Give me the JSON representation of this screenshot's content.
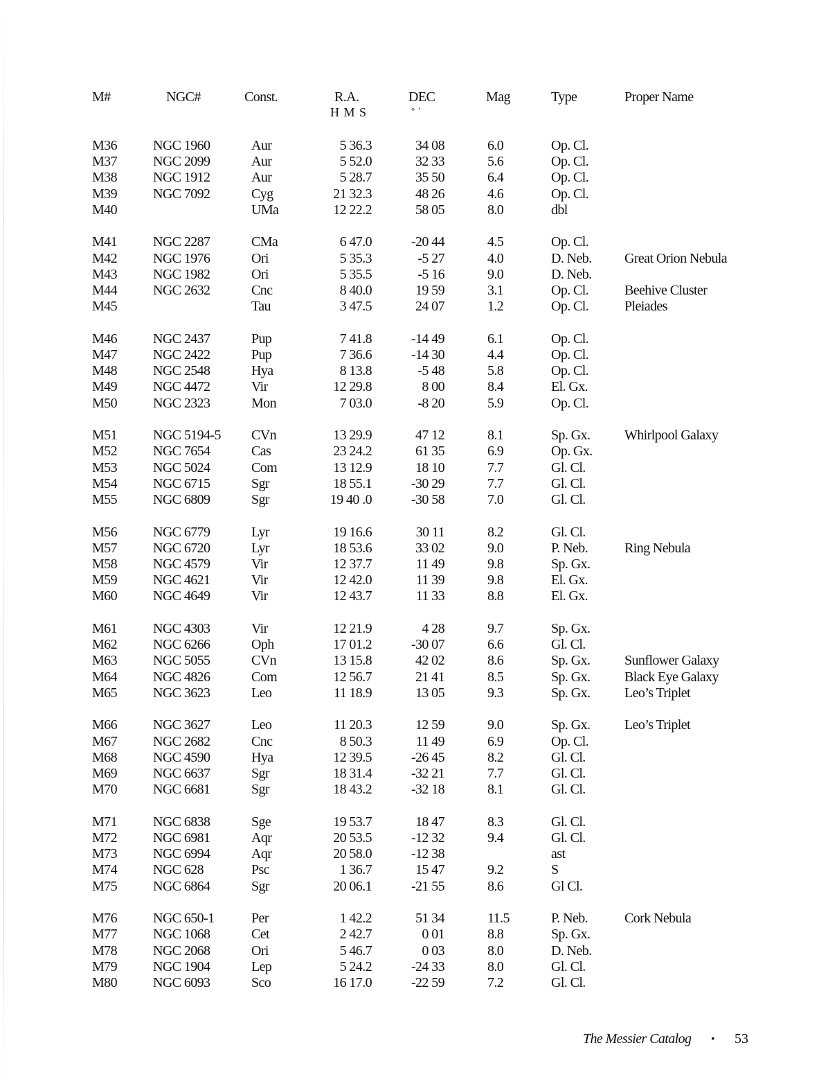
{
  "headers": {
    "m": "M#",
    "ngc": "NGC#",
    "const": "Const.",
    "ra": "R.A.",
    "ra_units": "H M S",
    "dec": "DEC",
    "dec_units": "° ′",
    "mag": "Mag",
    "type": "Type",
    "name": "Proper Name"
  },
  "groups": [
    [
      [
        "M36",
        "NGC 1960",
        "Aur",
        "5 36.3",
        "34 08",
        "6.0",
        "Op. Cl.",
        ""
      ],
      [
        "M37",
        "NGC 2099",
        "Aur",
        "5 52.0",
        "32 33",
        "5.6",
        "Op. Cl.",
        ""
      ],
      [
        "M38",
        "NGC 1912",
        "Aur",
        "5 28.7",
        "35 50",
        "6.4",
        "Op. Cl.",
        ""
      ],
      [
        "M39",
        "NGC 7092",
        "Cyg",
        "21 32.3",
        "48 26",
        "4.6",
        "Op. Cl.",
        ""
      ],
      [
        "M40",
        "",
        "UMa",
        "12 22.2",
        "58 05",
        "8.0",
        "dbl",
        ""
      ]
    ],
    [
      [
        "M41",
        "NGC 2287",
        "CMa",
        "6 47.0",
        "-20 44",
        "4.5",
        "Op. Cl.",
        ""
      ],
      [
        "M42",
        "NGC 1976",
        "Ori",
        "5 35.3",
        "-5 27",
        "4.0",
        "D. Neb.",
        "Great Orion Nebula"
      ],
      [
        "M43",
        "NGC 1982",
        "Ori",
        "5 35.5",
        "-5 16",
        "9.0",
        "D. Neb.",
        ""
      ],
      [
        "M44",
        "NGC 2632",
        "Cnc",
        "8 40.0",
        "19 59",
        "3.1",
        "Op. Cl.",
        "Beehive Cluster"
      ],
      [
        "M45",
        "",
        "Tau",
        "3 47.5",
        "24 07",
        "1.2",
        "Op. Cl.",
        "Pleiades"
      ]
    ],
    [
      [
        "M46",
        "NGC 2437",
        "Pup",
        "7 41.8",
        "-14 49",
        "6.1",
        "Op. Cl.",
        ""
      ],
      [
        "M47",
        "NGC 2422",
        "Pup",
        "7 36.6",
        "-14 30",
        "4.4",
        "Op. Cl.",
        ""
      ],
      [
        "M48",
        "NGC 2548",
        "Hya",
        "8 13.8",
        "-5 48",
        "5.8",
        "Op. Cl.",
        ""
      ],
      [
        "M49",
        "NGC 4472",
        "Vir",
        "12 29.8",
        "8 00",
        "8.4",
        "El. Gx.",
        ""
      ],
      [
        "M50",
        "NGC 2323",
        "Mon",
        "7 03.0",
        "-8 20",
        "5.9",
        "Op. Cl.",
        ""
      ]
    ],
    [
      [
        "M51",
        "NGC 5194-5",
        "CVn",
        "13 29.9",
        "47 12",
        "8.1",
        "Sp. Gx.",
        "Whirlpool Galaxy"
      ],
      [
        "M52",
        "NGC 7654",
        "Cas",
        "23 24.2",
        "61 35",
        "6.9",
        "Op. Gx.",
        ""
      ],
      [
        "M53",
        "NGC 5024",
        "Com",
        "13 12.9",
        "18 10",
        "7.7",
        "Gl. Cl.",
        ""
      ],
      [
        "M54",
        "NGC 6715",
        "Sgr",
        "18 55.1",
        "-30 29",
        "7.7",
        "Gl. Cl.",
        ""
      ],
      [
        "M55",
        "NGC 6809",
        "Sgr",
        "19 40 .0",
        "-30 58",
        "7.0",
        "Gl. Cl.",
        ""
      ]
    ],
    [
      [
        "M56",
        "NGC 6779",
        "Lyr",
        "19 16.6",
        "30 11",
        "8.2",
        "Gl. Cl.",
        ""
      ],
      [
        "M57",
        "NGC 6720",
        "Lyr",
        "18 53.6",
        "33 02",
        "9.0",
        "P. Neb.",
        "Ring Nebula"
      ],
      [
        "M58",
        "NGC 4579",
        "Vir",
        "12 37.7",
        "11 49",
        "9.8",
        "Sp. Gx.",
        ""
      ],
      [
        "M59",
        "NGC 4621",
        "Vir",
        "12 42.0",
        "11 39",
        "9.8",
        "El. Gx.",
        ""
      ],
      [
        "M60",
        "NGC 4649",
        "Vir",
        "12 43.7",
        "11 33",
        "8.8",
        "El. Gx.",
        ""
      ]
    ],
    [
      [
        "M61",
        "NGC 4303",
        "Vir",
        "12 21.9",
        "4 28",
        "9.7",
        "Sp. Gx.",
        ""
      ],
      [
        "M62",
        "NGC 6266",
        "Oph",
        "17 01.2",
        "-30 07",
        "6.6",
        "Gl. Cl.",
        ""
      ],
      [
        "M63",
        "NGC 5055",
        "CVn",
        "13 15.8",
        "42 02",
        "8.6",
        "Sp. Gx.",
        "Sunflower Galaxy"
      ],
      [
        "M64",
        "NGC 4826",
        "Com",
        "12 56.7",
        "21 41",
        "8.5",
        "Sp. Gx.",
        "Black Eye Galaxy"
      ],
      [
        "M65",
        "NGC 3623",
        "Leo",
        "11 18.9",
        "13 05",
        "9.3",
        "Sp. Gx.",
        "Leo’s Triplet"
      ]
    ],
    [
      [
        "M66",
        "NGC 3627",
        "Leo",
        "11 20.3",
        "12 59",
        "9.0",
        "Sp. Gx.",
        "Leo’s Triplet"
      ],
      [
        "M67",
        "NGC 2682",
        "Cnc",
        "8 50.3",
        "11 49",
        "6.9",
        "Op. Cl.",
        ""
      ],
      [
        "M68",
        "NGC 4590",
        "Hya",
        "12 39.5",
        "-26 45",
        "8.2",
        "Gl. Cl.",
        ""
      ],
      [
        "M69",
        "NGC 6637",
        "Sgr",
        "18 31.4",
        "-32 21",
        "7.7",
        "Gl. Cl.",
        ""
      ],
      [
        "M70",
        "NGC 6681",
        "Sgr",
        "18 43.2",
        "-32 18",
        "8.1",
        "Gl. Cl.",
        ""
      ]
    ],
    [
      [
        "M71",
        "NGC 6838",
        "Sge",
        "19 53.7",
        "18 47",
        "8.3",
        "Gl. Cl.",
        ""
      ],
      [
        "M72",
        "NGC 6981",
        "Aqr",
        "20 53.5",
        "-12 32",
        "9.4",
        "Gl. Cl.",
        ""
      ],
      [
        "M73",
        "NGC 6994",
        "Aqr",
        "20 58.0",
        "-12 38",
        "",
        "ast",
        ""
      ],
      [
        "M74",
        "NGC 628",
        "Psc",
        "1 36.7",
        "15 47",
        "9.2",
        "S",
        ""
      ],
      [
        "M75",
        "NGC 6864",
        "Sgr",
        "20 06.1",
        "-21 55",
        "8.6",
        "Gl Cl.",
        ""
      ]
    ],
    [
      [
        "M76",
        "NGC 650-1",
        "Per",
        "1 42.2",
        "51 34",
        "11.5",
        "P. Neb.",
        "Cork Nebula"
      ],
      [
        "M77",
        "NGC 1068",
        "Cet",
        "2 42.7",
        "0 01",
        "8.8",
        "Sp. Gx.",
        ""
      ],
      [
        "M78",
        "NGC 2068",
        "Ori",
        "5 46.7",
        "0 03",
        "8.0",
        "D. Neb.",
        ""
      ],
      [
        "M79",
        "NGC 1904",
        "Lep",
        "5 24.2",
        "-24 33",
        "8.0",
        "Gl. Cl.",
        ""
      ],
      [
        "M80",
        "NGC 6093",
        "Sco",
        "16 17.0",
        "-22 59",
        "7.2",
        "Gl. Cl.",
        ""
      ]
    ]
  ],
  "footer": {
    "title": "The Messier Catalog",
    "page": "53"
  }
}
